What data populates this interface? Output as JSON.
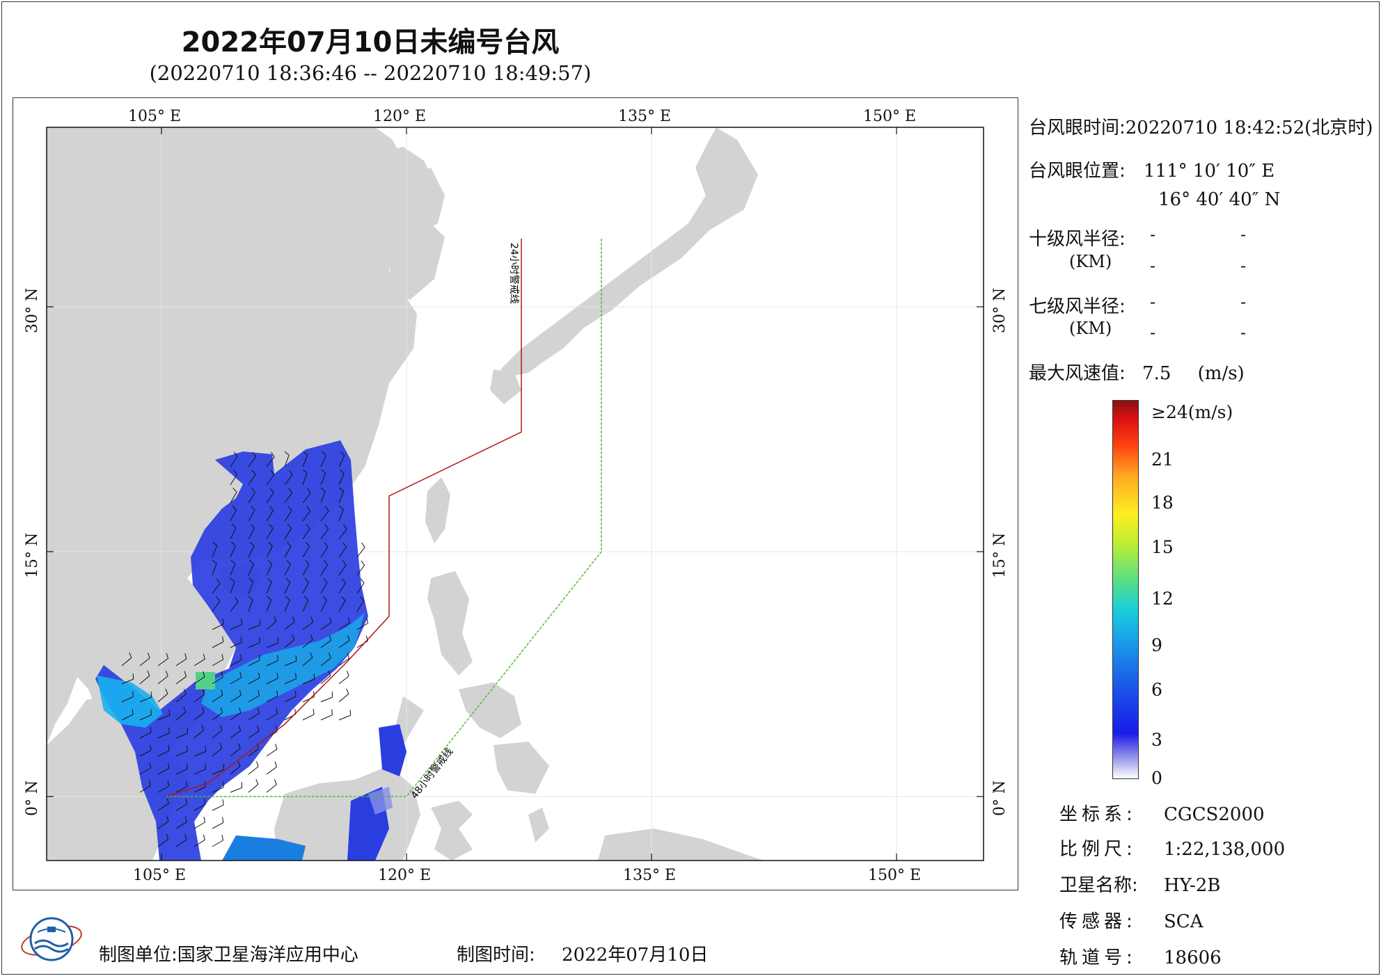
{
  "header": {
    "title": "2022年07月10日未编号台风",
    "subtitle": "(20220710 18:36:46 -- 20220710 18:49:57)"
  },
  "map": {
    "lon_ticks_top": [
      "105° E",
      "120° E",
      "135° E",
      "150° E"
    ],
    "lon_ticks_bottom": [
      "105° E",
      "120° E",
      "135° E",
      "150° E"
    ],
    "lat_ticks_left": [
      "30° N",
      "15° N",
      "0° N"
    ],
    "lat_ticks_right": [
      "30° N",
      "15° N",
      "0° N"
    ],
    "line_24h_label": "24小时警戒线",
    "line_48h_label": "48小时警戒线",
    "colors": {
      "land": "#d3d3d3",
      "sea": "#ffffff",
      "line_24h": "#b01616",
      "line_48h": "#55bb33",
      "wind_low": "#2a3ee0",
      "wind_mid": "#1aa8e8"
    }
  },
  "info": {
    "eye_time_label": "台风眼时间:",
    "eye_time_value": "20220710 18:42:52(北京时)",
    "eye_pos_label": "台风眼位置:",
    "eye_lon": "111° 10′ 10″ E",
    "eye_lat": "16° 40′ 40″ N",
    "r10_label": "十级风半径:",
    "r10_unit": "(KM)",
    "r7_label": "七级风半径:",
    "r7_unit": "(KM)",
    "dash": "-",
    "max_wind_label": "最大风速值:",
    "max_wind_value": "7.5",
    "max_wind_unit": "(m/s)"
  },
  "colorbar": {
    "labels": [
      "≥24(m/s)",
      "21",
      "18",
      "15",
      "12",
      "9",
      "6",
      "3",
      "0"
    ]
  },
  "meta": {
    "coord_label": "坐标系:",
    "coord_value": "CGCS2000",
    "scale_label": "比例尺:",
    "scale_value": "1:22,138,000",
    "sat_label": "卫星名称:",
    "sat_value": "HY-2B",
    "sensor_label": "传感器:",
    "sensor_value": "SCA",
    "orbit_label": "轨道号:",
    "orbit_value": "18606"
  },
  "footer": {
    "unit_label": "制图单位:",
    "unit_value": "国家卫星海洋应用中心",
    "time_label": "制图时间:",
    "time_value": "2022年07月10日"
  }
}
